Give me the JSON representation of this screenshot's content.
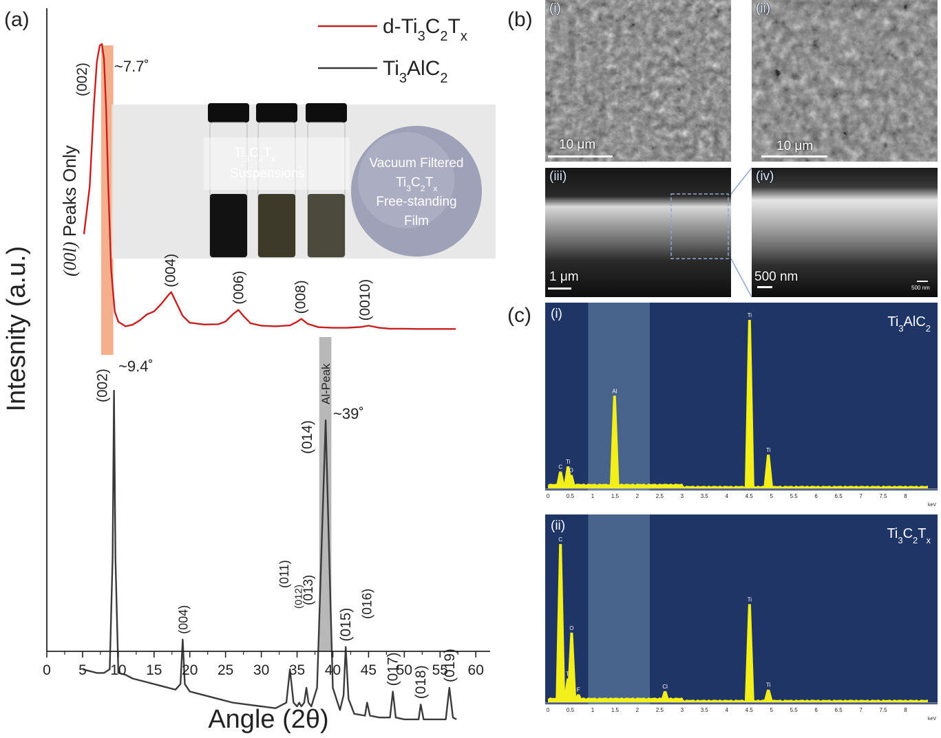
{
  "panels": {
    "a": "(a)",
    "b": "(b)",
    "c": "(c)"
  },
  "xrd": {
    "xlabel": "Angle (2θ)",
    "ylabel": "Intesnity (a.u.)",
    "side_label": {
      "italic": "(00l)",
      "rest": " Peaks Only"
    },
    "legend": [
      {
        "name": "d-Ti3C2Tx",
        "base": "d-Ti",
        "parts": [
          [
            "3",
            "sub"
          ],
          [
            "C",
            ""
          ],
          [
            "2",
            "sub"
          ],
          [
            "T",
            ""
          ],
          [
            "x",
            "sub"
          ]
        ],
        "color": "#c81e1e"
      },
      {
        "name": "Ti3AlC2",
        "base": "Ti",
        "parts": [
          [
            "3",
            "sub"
          ],
          [
            "AlC",
            ""
          ],
          [
            "2",
            "sub"
          ]
        ],
        "color": "#3a3a3a"
      }
    ],
    "annotations": {
      "peak_77": "~7.7˚",
      "peak_94": "~9.4˚",
      "peak_39": "~39˚",
      "al_peak": "Al-Peak"
    },
    "photo_inset": {
      "suspension_label_1": "Ti3C2Tx",
      "suspension_label_2": "Suspensions",
      "film_label": [
        "Vacuum Filtered",
        "Ti3C2Tx",
        "Free-standing",
        "Film"
      ]
    }
  },
  "chart_data": [
    {
      "type": "line",
      "title": "",
      "xlabel": "Angle (2θ)",
      "ylabel": "Intesnity (a.u.)",
      "xlim": [
        0,
        62
      ],
      "xticks": [
        0,
        5,
        10,
        15,
        20,
        25,
        30,
        35,
        40,
        45,
        50,
        55,
        60
      ],
      "series": [
        {
          "name": "d-Ti3C2Tx",
          "color": "#c81e1e",
          "x": [
            5.2,
            6.0,
            6.6,
            7.0,
            7.4,
            7.7,
            8.0,
            8.3,
            8.6,
            9.0,
            9.5,
            10,
            11,
            12,
            13,
            14,
            15,
            16,
            17,
            17.4,
            18,
            19,
            20,
            22,
            24,
            25,
            26,
            26.8,
            27.5,
            28.5,
            30,
            32,
            34,
            35,
            35.6,
            36.5,
            38,
            40,
            42,
            44,
            45,
            46.5,
            48,
            50,
            52,
            55,
            57.2
          ],
          "y": [
            0.36,
            0.52,
            0.8,
            0.94,
            0.995,
            1.0,
            0.95,
            0.78,
            0.52,
            0.24,
            0.1,
            0.065,
            0.05,
            0.055,
            0.07,
            0.09,
            0.1,
            0.125,
            0.155,
            0.165,
            0.135,
            0.085,
            0.062,
            0.056,
            0.057,
            0.066,
            0.09,
            0.105,
            0.085,
            0.06,
            0.052,
            0.05,
            0.053,
            0.065,
            0.075,
            0.058,
            0.047,
            0.045,
            0.045,
            0.048,
            0.052,
            0.045,
            0.042,
            0.042,
            0.041,
            0.041,
            0.041
          ],
          "peak_labels": [
            {
              "x": 7.7,
              "label": "(002)"
            },
            {
              "x": 17.3,
              "label": "(004)"
            },
            {
              "x": 26.8,
              "label": "(006)"
            },
            {
              "x": 35.5,
              "label": "(008)"
            },
            {
              "x": 44.5,
              "label": "(0010)"
            }
          ]
        },
        {
          "name": "Ti3AlC2",
          "color": "#3a3a3a",
          "x": [
            5.0,
            6,
            7,
            8,
            8.8,
            9.2,
            9.4,
            9.6,
            10.0,
            11,
            12,
            14,
            16,
            18,
            18.7,
            19.0,
            19.3,
            20,
            22,
            24,
            26,
            28,
            30,
            32,
            33.5,
            34.0,
            34.5,
            35.0,
            35.3,
            35.6,
            36.0,
            36.3,
            36.6,
            37.0,
            37.8,
            38.5,
            39.0,
            39.4,
            40.0,
            41.0,
            41.5,
            41.8,
            42.2,
            43,
            44.5,
            44.8,
            45.2,
            46.5,
            48.0,
            48.4,
            48.8,
            50,
            52.0,
            52.3,
            52.7,
            54,
            55.8,
            56.3,
            56.8,
            57.3
          ],
          "y": [
            0.25,
            0.245,
            0.24,
            0.24,
            0.25,
            0.55,
            1.0,
            0.55,
            0.24,
            0.235,
            0.225,
            0.215,
            0.205,
            0.195,
            0.21,
            0.33,
            0.21,
            0.19,
            0.18,
            0.17,
            0.16,
            0.155,
            0.15,
            0.145,
            0.16,
            0.25,
            0.16,
            0.15,
            0.16,
            0.15,
            0.16,
            0.2,
            0.16,
            0.15,
            0.2,
            0.62,
            0.92,
            0.62,
            0.2,
            0.14,
            0.18,
            0.31,
            0.17,
            0.13,
            0.125,
            0.16,
            0.125,
            0.12,
            0.12,
            0.19,
            0.12,
            0.115,
            0.115,
            0.155,
            0.115,
            0.115,
            0.115,
            0.2,
            0.12,
            0.115
          ],
          "peak_labels": [
            {
              "x": 9.4,
              "label": "(002)"
            },
            {
              "x": 19.0,
              "label": "(004)"
            },
            {
              "x": 34.0,
              "label": "(011)"
            },
            {
              "x": 35.3,
              "label": "(012)"
            },
            {
              "x": 36.6,
              "label": "(013)"
            },
            {
              "x": 39.0,
              "label": "(014)"
            },
            {
              "x": 41.8,
              "label": "(015)"
            },
            {
              "x": 44.8,
              "label": "(016)"
            },
            {
              "x": 48.4,
              "label": "(017)"
            },
            {
              "x": 52.3,
              "label": "(018)"
            },
            {
              "x": 56.3,
              "label": "(019)"
            }
          ]
        }
      ],
      "highlights": [
        {
          "x_range": [
            7.6,
            9.3
          ],
          "color": "#f4b08c"
        },
        {
          "x_range": [
            38.1,
            39.8
          ],
          "color": "#b8b8b8"
        }
      ],
      "grid": false,
      "legend_position": "top-right"
    },
    {
      "type": "bar",
      "title": "Ti3AlC2",
      "xlabel": "keV",
      "xlim": [
        0,
        8.5
      ],
      "xticks": [
        0,
        0.5,
        1,
        1.5,
        2,
        2.5,
        3,
        3.5,
        4,
        4.5,
        5,
        5.5,
        6,
        6.5,
        7,
        7.5,
        8
      ],
      "peaks": [
        {
          "x": 0.28,
          "h": 0.1,
          "label": "C"
        },
        {
          "x": 0.45,
          "h": 0.13,
          "label": "Ti"
        },
        {
          "x": 0.52,
          "h": 0.08,
          "label": "O"
        },
        {
          "x": 1.49,
          "h": 0.55,
          "label": "Al"
        },
        {
          "x": 4.51,
          "h": 1.0,
          "label": "Ti"
        },
        {
          "x": 4.93,
          "h": 0.2,
          "label": "Ti"
        }
      ]
    },
    {
      "type": "bar",
      "title": "Ti3C2Tx",
      "xlabel": "keV",
      "xlim": [
        0,
        8.5
      ],
      "xticks": [
        0,
        0.5,
        1,
        1.5,
        2,
        2.5,
        3,
        3.5,
        4,
        4.5,
        5,
        5.5,
        6,
        6.5,
        7,
        7.5,
        8
      ],
      "peaks": [
        {
          "x": 0.28,
          "h": 1.0,
          "label": "C"
        },
        {
          "x": 0.45,
          "h": 0.15,
          "label": "Ti"
        },
        {
          "x": 0.53,
          "h": 0.44,
          "label": "O"
        },
        {
          "x": 0.68,
          "h": 0.05,
          "label": "F"
        },
        {
          "x": 2.62,
          "h": 0.07,
          "label": "Cl"
        },
        {
          "x": 4.51,
          "h": 0.62,
          "label": "Ti"
        },
        {
          "x": 4.93,
          "h": 0.08,
          "label": "Ti"
        }
      ]
    }
  ],
  "sem": {
    "i": {
      "label": "(i)",
      "scale": "10 μm"
    },
    "ii": {
      "label": "(ii)",
      "scale": "10 μm"
    },
    "iii": {
      "label": "(iii)",
      "scale": "1 μm"
    },
    "iv": {
      "label": "(iv)",
      "scale": "500 nm",
      "small_scale": "500 nm"
    }
  },
  "eds": {
    "i": {
      "label": "(i)",
      "title_parts": [
        [
          "Ti",
          ""
        ],
        [
          "3",
          "sub"
        ],
        [
          "AlC",
          ""
        ],
        [
          "2",
          "sub"
        ]
      ]
    },
    "ii": {
      "label": "(ii)",
      "title_parts": [
        [
          "Ti",
          ""
        ],
        [
          "3",
          "sub"
        ],
        [
          "C",
          ""
        ],
        [
          "2",
          "sub"
        ],
        [
          "T",
          ""
        ],
        [
          "x",
          "sub"
        ]
      ]
    },
    "unit": "keV",
    "bg": "#1f3566",
    "band": "#506c94",
    "peak_color": "#f2ef1a"
  }
}
